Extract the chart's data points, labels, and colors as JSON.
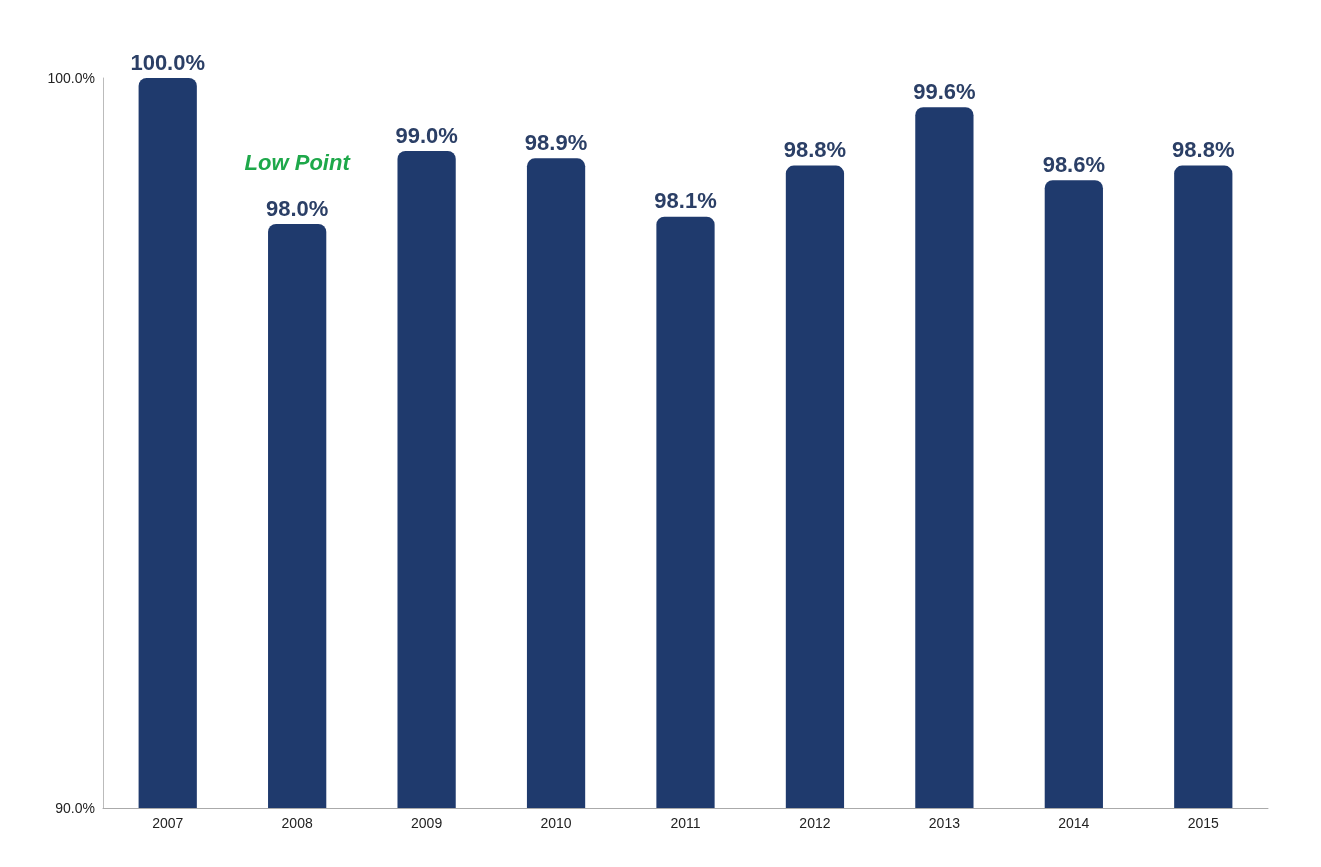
{
  "chart_data": {
    "type": "bar",
    "categories": [
      "2007",
      "2008",
      "2009",
      "2010",
      "2011",
      "2012",
      "2013",
      "2014",
      "2015"
    ],
    "values": [
      100.0,
      98.0,
      99.0,
      98.9,
      98.1,
      98.8,
      99.6,
      98.6,
      98.8
    ],
    "value_labels": [
      "100.0%",
      "98.0%",
      "99.0%",
      "98.9%",
      "98.1%",
      "98.8%",
      "99.6%",
      "98.6%",
      "98.8%"
    ],
    "color": "#1f3a6d",
    "ylim": [
      90,
      100
    ],
    "yticks": [
      {
        "value": 90,
        "label": "90.0%"
      },
      {
        "value": 100,
        "label": "100.0%"
      }
    ],
    "annotations": [
      {
        "text": "Low Point",
        "x": "2008",
        "y": 98.0
      }
    ],
    "grid": false
  }
}
